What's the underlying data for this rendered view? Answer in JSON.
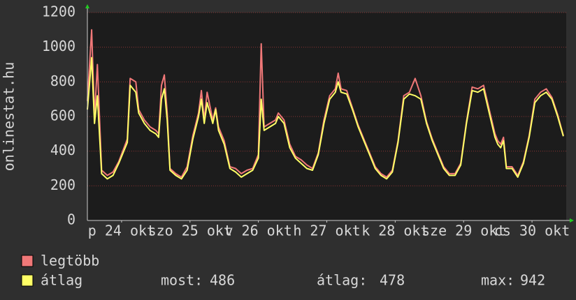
{
  "chart_data": {
    "type": "line",
    "ylabel": "onlinestat.hu",
    "x": [
      0,
      1.5,
      2.5,
      3.5,
      5,
      7,
      9,
      11,
      14,
      15,
      17,
      18,
      20,
      22,
      24,
      25,
      26,
      27,
      28,
      29,
      31,
      33,
      35,
      37,
      39,
      40,
      41,
      42,
      44,
      45,
      46,
      48,
      50,
      52,
      54,
      56,
      58,
      60,
      61,
      62,
      64,
      66,
      67,
      69,
      71,
      73,
      75,
      77,
      79,
      81,
      83,
      85,
      87,
      88,
      89,
      91,
      93,
      95,
      97,
      99,
      101,
      103,
      105,
      107,
      109,
      111,
      113,
      115,
      117,
      119,
      121,
      123,
      125,
      127,
      129,
      131,
      133,
      135,
      137,
      139,
      141,
      143,
      144,
      145,
      146,
      147,
      149,
      151,
      153,
      155,
      157,
      159,
      161,
      163,
      165,
      167
    ],
    "xlim": [
      0,
      168
    ],
    "xticks": [
      {
        "value": 12,
        "label": "p 24 okt"
      },
      {
        "value": 36,
        "label": "szo 25 okt"
      },
      {
        "value": 60,
        "label": "v 26 okt"
      },
      {
        "value": 84,
        "label": "h 27 okt"
      },
      {
        "value": 108,
        "label": "k 28 okt"
      },
      {
        "value": 132,
        "label": "sze 29 okt"
      },
      {
        "value": 156,
        "label": "cs 30 okt"
      }
    ],
    "ylim": [
      0,
      1200
    ],
    "yticks": [
      0,
      200,
      400,
      600,
      800,
      1000,
      1200
    ],
    "grid": true,
    "series": [
      {
        "name": "legtöbb",
        "color": "#f07878",
        "values": [
          690,
          1100,
          600,
          900,
          290,
          260,
          280,
          340,
          470,
          820,
          800,
          640,
          580,
          540,
          520,
          500,
          780,
          840,
          620,
          300,
          270,
          250,
          310,
          490,
          620,
          750,
          580,
          740,
          580,
          650,
          540,
          460,
          310,
          300,
          270,
          290,
          300,
          380,
          1020,
          540,
          560,
          580,
          620,
          580,
          440,
          370,
          350,
          320,
          300,
          390,
          580,
          720,
          760,
          850,
          760,
          750,
          650,
          550,
          470,
          390,
          310,
          270,
          250,
          290,
          460,
          720,
          740,
          820,
          720,
          570,
          470,
          390,
          310,
          270,
          270,
          330,
          570,
          770,
          760,
          780,
          640,
          500,
          460,
          440,
          480,
          310,
          310,
          260,
          340,
          490,
          700,
          740,
          760,
          710,
          610,
          490
        ]
      },
      {
        "name": "átlag",
        "color": "#ffff66",
        "values": [
          640,
          940,
          560,
          720,
          270,
          240,
          260,
          330,
          450,
          780,
          740,
          620,
          560,
          520,
          500,
          480,
          700,
          760,
          580,
          290,
          260,
          240,
          290,
          470,
          600,
          700,
          560,
          680,
          560,
          640,
          520,
          440,
          300,
          280,
          250,
          270,
          290,
          360,
          700,
          520,
          540,
          560,
          600,
          560,
          420,
          360,
          330,
          300,
          290,
          380,
          560,
          700,
          740,
          800,
          740,
          730,
          640,
          540,
          460,
          380,
          300,
          260,
          240,
          280,
          450,
          700,
          730,
          720,
          700,
          560,
          460,
          380,
          300,
          260,
          260,
          320,
          560,
          750,
          740,
          760,
          620,
          480,
          440,
          420,
          460,
          300,
          300,
          250,
          330,
          480,
          680,
          720,
          740,
          700,
          600,
          486
        ]
      }
    ],
    "stats": [
      {
        "label": "most:",
        "value": 486
      },
      {
        "label": "átlag:",
        "value": 478
      },
      {
        "label": "max:",
        "value": 942
      }
    ]
  }
}
